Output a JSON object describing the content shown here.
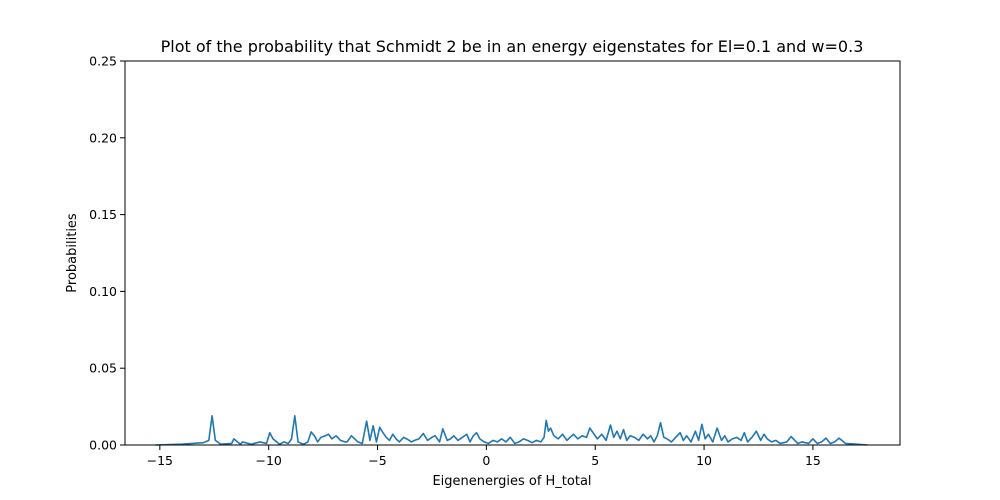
{
  "chart_data": {
    "type": "line",
    "title": "Plot of the probability that Schmidt 2 be in an energy eigenstates for El=0.1 and w=0.3",
    "xlabel": "Eigenenergies of H_total",
    "ylabel": "Probabilities",
    "xlim": [
      -16.6,
      19.0
    ],
    "ylim": [
      0.0,
      0.25
    ],
    "xticks": [
      -15,
      -10,
      -5,
      0,
      5,
      10,
      15
    ],
    "xtick_labels": [
      "−15",
      "−10",
      "−5",
      "0",
      "5",
      "10",
      "15"
    ],
    "yticks": [
      0.0,
      0.05,
      0.1,
      0.15,
      0.2,
      0.25
    ],
    "ytick_labels": [
      "0.00",
      "0.05",
      "0.10",
      "0.15",
      "0.20",
      "0.25"
    ],
    "grid": false,
    "series": [
      {
        "color": "#1f77b4",
        "x": [
          -15.2,
          -14.0,
          -13.5,
          -13.0,
          -12.75,
          -12.6,
          -12.45,
          -12.2,
          -11.7,
          -11.6,
          -11.3,
          -11.2,
          -10.8,
          -10.4,
          -10.1,
          -9.95,
          -9.8,
          -9.5,
          -9.3,
          -9.1,
          -8.95,
          -8.8,
          -8.65,
          -8.4,
          -8.2,
          -8.05,
          -7.9,
          -7.75,
          -7.6,
          -7.4,
          -7.25,
          -7.1,
          -6.9,
          -6.7,
          -6.5,
          -6.4,
          -6.2,
          -5.9,
          -5.7,
          -5.5,
          -5.35,
          -5.2,
          -5.05,
          -4.9,
          -4.75,
          -4.6,
          -4.45,
          -4.3,
          -4.15,
          -4.0,
          -3.8,
          -3.6,
          -3.45,
          -3.3,
          -3.1,
          -2.9,
          -2.7,
          -2.5,
          -2.35,
          -2.15,
          -2.0,
          -1.8,
          -1.65,
          -1.5,
          -1.3,
          -1.1,
          -0.9,
          -0.75,
          -0.6,
          -0.45,
          -0.3,
          -0.1,
          0.1,
          0.3,
          0.5,
          0.7,
          0.9,
          1.1,
          1.3,
          1.5,
          1.7,
          1.9,
          2.1,
          2.3,
          2.5,
          2.65,
          2.75,
          2.85,
          2.95,
          3.1,
          3.3,
          3.5,
          3.7,
          3.85,
          4.0,
          4.2,
          4.4,
          4.6,
          4.75,
          4.9,
          5.1,
          5.3,
          5.5,
          5.7,
          5.85,
          6.0,
          6.15,
          6.3,
          6.45,
          6.6,
          6.8,
          7.0,
          7.2,
          7.4,
          7.55,
          7.7,
          7.85,
          8.0,
          8.15,
          8.3,
          8.5,
          8.7,
          8.9,
          9.05,
          9.2,
          9.4,
          9.6,
          9.75,
          9.9,
          10.05,
          10.2,
          10.4,
          10.6,
          10.8,
          10.95,
          11.1,
          11.3,
          11.5,
          11.7,
          11.85,
          12.0,
          12.2,
          12.4,
          12.6,
          12.75,
          12.9,
          13.1,
          13.3,
          13.5,
          13.8,
          14.0,
          14.3,
          14.5,
          14.8,
          15.0,
          15.2,
          15.4,
          15.6,
          15.8,
          16.0,
          16.2,
          16.5,
          17.0,
          17.5
        ],
        "y": [
          0.0,
          0.0005,
          0.001,
          0.0015,
          0.003,
          0.019,
          0.003,
          0.0005,
          0.001,
          0.004,
          0.0005,
          0.002,
          0.0005,
          0.002,
          0.001,
          0.008,
          0.004,
          0.0005,
          0.002,
          0.001,
          0.004,
          0.019,
          0.002,
          0.0005,
          0.002,
          0.0085,
          0.006,
          0.002,
          0.005,
          0.006,
          0.007,
          0.004,
          0.006,
          0.003,
          0.002,
          0.002,
          0.006,
          0.002,
          0.001,
          0.0155,
          0.003,
          0.0125,
          0.002,
          0.0115,
          0.008,
          0.005,
          0.003,
          0.007,
          0.004,
          0.002,
          0.005,
          0.0035,
          0.002,
          0.003,
          0.004,
          0.0075,
          0.003,
          0.005,
          0.006,
          0.002,
          0.0105,
          0.003,
          0.004,
          0.006,
          0.003,
          0.005,
          0.007,
          0.002,
          0.006,
          0.008,
          0.004,
          0.002,
          0.001,
          0.003,
          0.002,
          0.004,
          0.002,
          0.005,
          0.001,
          0.002,
          0.004,
          0.003,
          0.0015,
          0.003,
          0.002,
          0.005,
          0.016,
          0.009,
          0.011,
          0.006,
          0.004,
          0.007,
          0.003,
          0.005,
          0.007,
          0.004,
          0.006,
          0.005,
          0.011,
          0.008,
          0.004,
          0.007,
          0.003,
          0.013,
          0.005,
          0.009,
          0.004,
          0.01,
          0.003,
          0.006,
          0.005,
          0.003,
          0.007,
          0.004,
          0.006,
          0.002,
          0.006,
          0.0145,
          0.005,
          0.004,
          0.002,
          0.005,
          0.008,
          0.003,
          0.006,
          0.002,
          0.009,
          0.003,
          0.0135,
          0.004,
          0.007,
          0.002,
          0.011,
          0.003,
          0.006,
          0.002,
          0.004,
          0.005,
          0.003,
          0.008,
          0.002,
          0.005,
          0.009,
          0.003,
          0.007,
          0.004,
          0.002,
          0.003,
          0.001,
          0.002,
          0.0055,
          0.001,
          0.002,
          0.001,
          0.004,
          0.001,
          0.002,
          0.0045,
          0.001,
          0.002,
          0.0045,
          0.001,
          0.0005,
          0.0
        ]
      }
    ]
  }
}
